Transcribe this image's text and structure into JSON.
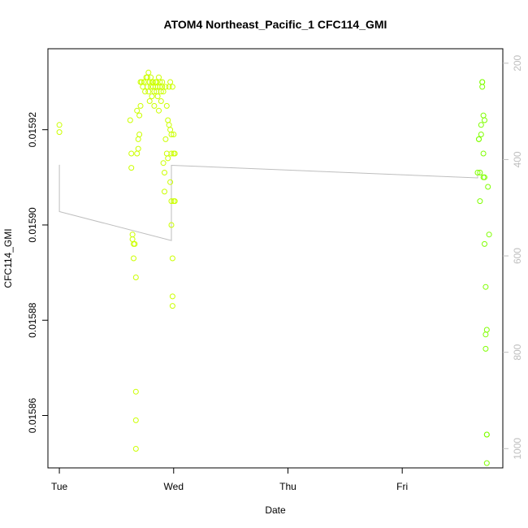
{
  "chart_data": {
    "type": "scatter",
    "title": "ATOM4 Northeast_Pacific_1 CFC114_GMI",
    "xlabel": "Date",
    "ylabel": "CFC114_GMI",
    "x_unit": "days",
    "x_ticks": [
      {
        "value": 0,
        "label": "Tue"
      },
      {
        "value": 1,
        "label": "Wed"
      },
      {
        "value": 2,
        "label": "Thu"
      },
      {
        "value": 3,
        "label": "Fri"
      }
    ],
    "xlim": [
      -0.1,
      3.88
    ],
    "ylim": [
      0.015849,
      0.015937
    ],
    "y_ticks": [
      {
        "value": 0.01586,
        "label": "0.01586"
      },
      {
        "value": 0.01588,
        "label": "0.01588"
      },
      {
        "value": 0.0159,
        "label": "0.01590"
      },
      {
        "value": 0.01592,
        "label": "0.01592"
      }
    ],
    "y2lim": [
      1040,
      170
    ],
    "y2_ticks": [
      {
        "value": 200,
        "label": "200"
      },
      {
        "value": 400,
        "label": "400"
      },
      {
        "value": 600,
        "label": "600"
      },
      {
        "value": 800,
        "label": "800"
      },
      {
        "value": 1000,
        "label": "1000"
      }
    ],
    "grid": false,
    "point_colors": [
      "#ccff00",
      "#b8ff00",
      "#99ff00",
      "#7fff00"
    ],
    "line_color": "#bebebe",
    "points": [
      [
        0.0,
        0.015921
      ],
      [
        0.0,
        0.0159195
      ],
      [
        0.62,
        0.015922
      ],
      [
        0.63,
        0.015915
      ],
      [
        0.63,
        0.015912
      ],
      [
        0.64,
        0.015898
      ],
      [
        0.64,
        0.015897
      ],
      [
        0.65,
        0.015896
      ],
      [
        0.65,
        0.015893
      ],
      [
        0.66,
        0.015896
      ],
      [
        0.67,
        0.015889
      ],
      [
        0.67,
        0.015865
      ],
      [
        0.67,
        0.015859
      ],
      [
        0.67,
        0.015853
      ],
      [
        0.68,
        0.015924
      ],
      [
        0.68,
        0.015915
      ],
      [
        0.69,
        0.015918
      ],
      [
        0.69,
        0.015916
      ],
      [
        0.7,
        0.015919
      ],
      [
        0.7,
        0.015923
      ],
      [
        0.71,
        0.015925
      ],
      [
        0.71,
        0.01593
      ],
      [
        0.72,
        0.01593
      ],
      [
        0.73,
        0.015929
      ],
      [
        0.74,
        0.01593
      ],
      [
        0.75,
        0.015928
      ],
      [
        0.76,
        0.015931
      ],
      [
        0.77,
        0.015931
      ],
      [
        0.77,
        0.015929
      ],
      [
        0.78,
        0.015932
      ],
      [
        0.78,
        0.015928
      ],
      [
        0.79,
        0.01593
      ],
      [
        0.79,
        0.015926
      ],
      [
        0.8,
        0.015931
      ],
      [
        0.8,
        0.015929
      ],
      [
        0.81,
        0.01593
      ],
      [
        0.81,
        0.015927
      ],
      [
        0.82,
        0.015929
      ],
      [
        0.82,
        0.01593
      ],
      [
        0.83,
        0.015928
      ],
      [
        0.83,
        0.015925
      ],
      [
        0.84,
        0.01593
      ],
      [
        0.84,
        0.015929
      ],
      [
        0.85,
        0.01593
      ],
      [
        0.85,
        0.015928
      ],
      [
        0.86,
        0.015929
      ],
      [
        0.86,
        0.015927
      ],
      [
        0.87,
        0.015931
      ],
      [
        0.87,
        0.015924
      ],
      [
        0.88,
        0.01593
      ],
      [
        0.88,
        0.015929
      ],
      [
        0.89,
        0.015928
      ],
      [
        0.89,
        0.015926
      ],
      [
        0.9,
        0.01593
      ],
      [
        0.9,
        0.015929
      ],
      [
        0.91,
        0.015928
      ],
      [
        0.91,
        0.015913
      ],
      [
        0.92,
        0.015911
      ],
      [
        0.92,
        0.015907
      ],
      [
        0.93,
        0.015929
      ],
      [
        0.93,
        0.015918
      ],
      [
        0.94,
        0.015925
      ],
      [
        0.94,
        0.015915
      ],
      [
        0.95,
        0.015914
      ],
      [
        0.95,
        0.015922
      ],
      [
        0.96,
        0.015929
      ],
      [
        0.96,
        0.015921
      ],
      [
        0.97,
        0.01593
      ],
      [
        0.97,
        0.01592
      ],
      [
        0.97,
        0.015909
      ],
      [
        0.98,
        0.015919
      ],
      [
        0.98,
        0.015915
      ],
      [
        0.98,
        0.015905
      ],
      [
        0.98,
        0.0159
      ],
      [
        0.99,
        0.015929
      ],
      [
        0.99,
        0.015893
      ],
      [
        0.99,
        0.015885
      ],
      [
        0.99,
        0.015883
      ],
      [
        1.0,
        0.015919
      ],
      [
        1.0,
        0.015915
      ],
      [
        1.0,
        0.015905
      ],
      [
        1.01,
        0.015905
      ],
      [
        1.01,
        0.015915
      ],
      [
        3.66,
        0.015911
      ],
      [
        3.67,
        0.015918
      ],
      [
        3.67,
        0.015918
      ],
      [
        3.68,
        0.015911
      ],
      [
        3.68,
        0.015905
      ],
      [
        3.69,
        0.015919
      ],
      [
        3.69,
        0.015921
      ],
      [
        3.7,
        0.015929
      ],
      [
        3.7,
        0.01593
      ],
      [
        3.7,
        0.01593
      ],
      [
        3.71,
        0.015915
      ],
      [
        3.71,
        0.015923
      ],
      [
        3.71,
        0.01591
      ],
      [
        3.72,
        0.015922
      ],
      [
        3.72,
        0.01591
      ],
      [
        3.72,
        0.015896
      ],
      [
        3.73,
        0.015887
      ],
      [
        3.73,
        0.015877
      ],
      [
        3.73,
        0.015874
      ],
      [
        3.74,
        0.015878
      ],
      [
        3.74,
        0.015856
      ],
      [
        3.74,
        0.015856
      ],
      [
        3.74,
        0.01585
      ],
      [
        3.75,
        0.015908
      ],
      [
        3.76,
        0.015898
      ]
    ],
    "depth_profile": [
      [
        0.0,
        411
      ],
      [
        0.0,
        508
      ],
      [
        0.98,
        568
      ],
      [
        0.98,
        412
      ],
      [
        3.66,
        438
      ],
      [
        3.66,
        433
      ]
    ]
  }
}
